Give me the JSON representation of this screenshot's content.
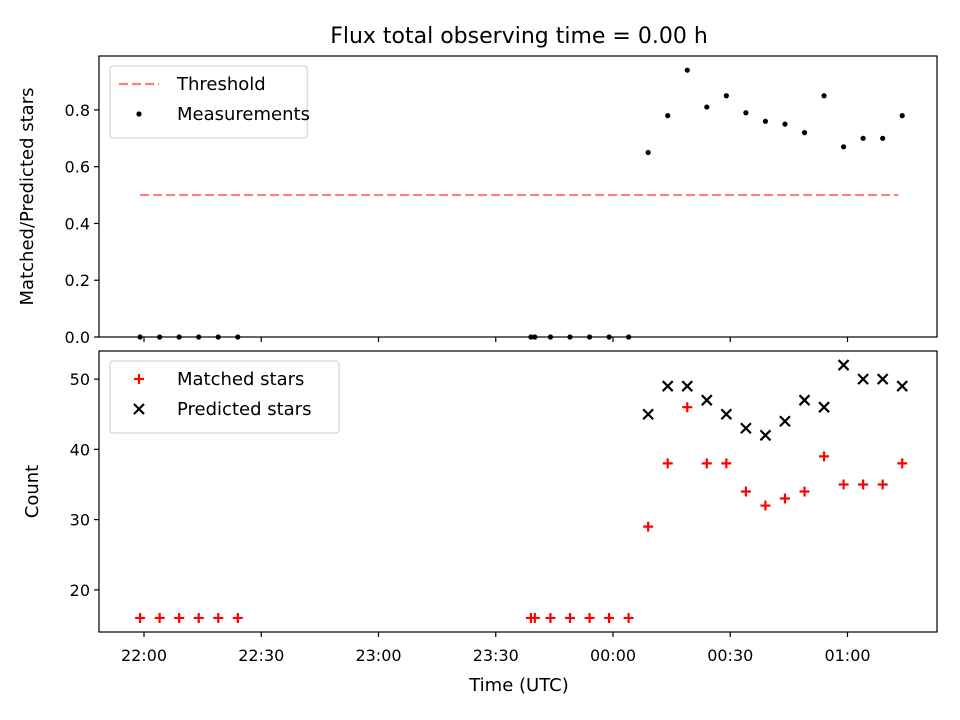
{
  "chart_data": [
    {
      "type": "scatter",
      "title": "Flux total observing time = 0.00 h",
      "xlabel": "",
      "ylabel": "Matched/Predicted stars",
      "ylim": [
        0.0,
        0.99
      ],
      "yticks": [
        "0.0",
        "0.2",
        "0.4",
        "0.6",
        "0.8"
      ],
      "grid": false,
      "legend": {
        "placement": "upper-left",
        "entries": [
          "Threshold",
          "Measurements"
        ]
      },
      "threshold": {
        "name": "Threshold",
        "value": 0.5,
        "x_start": "21:59",
        "x_end": "01:13",
        "style": "dashed",
        "color": "#ff7f7f"
      },
      "series": [
        {
          "name": "Measurements",
          "marker": "dot",
          "color": "#000000",
          "x": [
            "21:59",
            "22:04",
            "22:09",
            "22:14",
            "22:19",
            "22:24",
            "23:39",
            "23:40",
            "23:44",
            "23:49",
            "23:54",
            "23:59",
            "00:04",
            "00:09",
            "00:14",
            "00:19",
            "00:24",
            "00:29",
            "00:34",
            "00:39",
            "00:44",
            "00:49",
            "00:54",
            "00:59",
            "01:04",
            "01:09",
            "01:14"
          ],
          "y": [
            0,
            0,
            0,
            0,
            0,
            0,
            0,
            0,
            0,
            0,
            0,
            0,
            0,
            0.65,
            0.78,
            0.94,
            0.81,
            0.85,
            0.79,
            0.76,
            0.75,
            0.72,
            0.85,
            0.67,
            0.7,
            0.7,
            0.78
          ]
        }
      ]
    },
    {
      "type": "scatter",
      "xlabel": "Time (UTC)",
      "ylabel": "Count",
      "ylim": [
        14,
        54
      ],
      "yticks": [
        "20",
        "30",
        "40",
        "50"
      ],
      "xticks": [
        "22:00",
        "22:30",
        "23:00",
        "23:30",
        "00:00",
        "00:30",
        "01:00"
      ],
      "grid": false,
      "legend": {
        "placement": "upper-left",
        "entries": [
          "Matched stars",
          "Predicted stars"
        ]
      },
      "series": [
        {
          "name": "Matched stars",
          "marker": "plus",
          "color": "#ff0000",
          "x": [
            "21:59",
            "22:04",
            "22:09",
            "22:14",
            "22:19",
            "22:24",
            "23:39",
            "23:40",
            "23:44",
            "23:49",
            "23:54",
            "23:59",
            "00:04",
            "00:09",
            "00:14",
            "00:19",
            "00:24",
            "00:29",
            "00:34",
            "00:39",
            "00:44",
            "00:49",
            "00:54",
            "00:59",
            "01:04",
            "01:09",
            "01:14"
          ],
          "y": [
            16,
            16,
            16,
            16,
            16,
            16,
            16,
            16,
            16,
            16,
            16,
            16,
            16,
            29,
            38,
            46,
            38,
            38,
            34,
            32,
            33,
            34,
            39,
            35,
            35,
            35,
            38
          ]
        },
        {
          "name": "Predicted stars",
          "marker": "x",
          "color": "#000000",
          "x": [
            "00:09",
            "00:14",
            "00:19",
            "00:24",
            "00:29",
            "00:34",
            "00:39",
            "00:44",
            "00:49",
            "00:54",
            "00:59",
            "01:04",
            "01:09",
            "01:14"
          ],
          "y": [
            45,
            49,
            49,
            47,
            45,
            43,
            42,
            44,
            47,
            46,
            52,
            50,
            50,
            49
          ]
        }
      ]
    }
  ]
}
